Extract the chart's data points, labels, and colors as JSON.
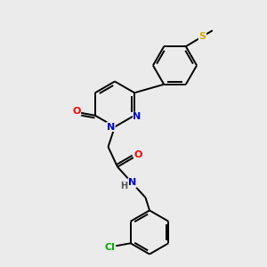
{
  "background_color": "#ebebeb",
  "bond_color": "#000000",
  "atom_colors": {
    "N": "#0000cc",
    "O": "#ff0000",
    "S": "#ccaa00",
    "Cl": "#00aa00",
    "H": "#555555"
  },
  "font_size": 8,
  "figsize": [
    3.0,
    3.0
  ],
  "dpi": 100
}
